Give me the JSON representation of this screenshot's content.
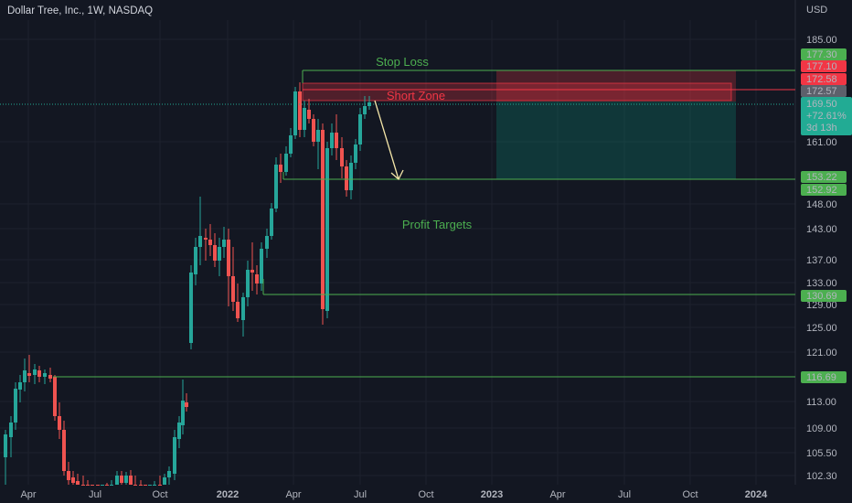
{
  "chart_data": {
    "type": "candlestick",
    "title": "Dollar Tree, Inc., 1W, NASDAQ",
    "currency": "USD",
    "y_ticks": [
      "185.00",
      "161.00",
      "148.00",
      "143.00",
      "137.00",
      "133.00",
      "129.00",
      "125.00",
      "121.00",
      "113.00",
      "109.00",
      "105.50",
      "102.30"
    ],
    "x_ticks": [
      {
        "label": "Apr",
        "bold": false
      },
      {
        "label": "Jul",
        "bold": false
      },
      {
        "label": "Oct",
        "bold": false
      },
      {
        "label": "2022",
        "bold": true
      },
      {
        "label": "Apr",
        "bold": false
      },
      {
        "label": "Jul",
        "bold": false
      },
      {
        "label": "Oct",
        "bold": false
      },
      {
        "label": "2023",
        "bold": true
      },
      {
        "label": "Apr",
        "bold": false
      },
      {
        "label": "Jul",
        "bold": false
      },
      {
        "label": "Oct",
        "bold": false
      },
      {
        "label": "2024",
        "bold": true
      }
    ],
    "price_tags": [
      {
        "text": "177.30",
        "color": "#4caf50"
      },
      {
        "text": "177.10",
        "color": "#f23645"
      },
      {
        "text": "172.58",
        "color": "#f23645"
      },
      {
        "text": "172.57",
        "color": "#5d606b"
      },
      {
        "text": "169.50",
        "text2": "+72.61%",
        "text3": "3d 13h",
        "color": "#22ab94"
      },
      {
        "text": "153.22",
        "color": "#4caf50"
      },
      {
        "text": "152.92",
        "color": "#4caf50"
      },
      {
        "text": "130.69",
        "color": "#4caf50"
      },
      {
        "text": "116.69",
        "color": "#4caf50"
      }
    ],
    "annotations": {
      "stop_loss": "Stop Loss",
      "short_zone": "Short Zone",
      "profit_targets": "Profit Targets"
    },
    "colors": {
      "up": "#26a69a",
      "down": "#ef5350",
      "level": "#4caf50",
      "arrow": "#f5e6a8"
    }
  }
}
